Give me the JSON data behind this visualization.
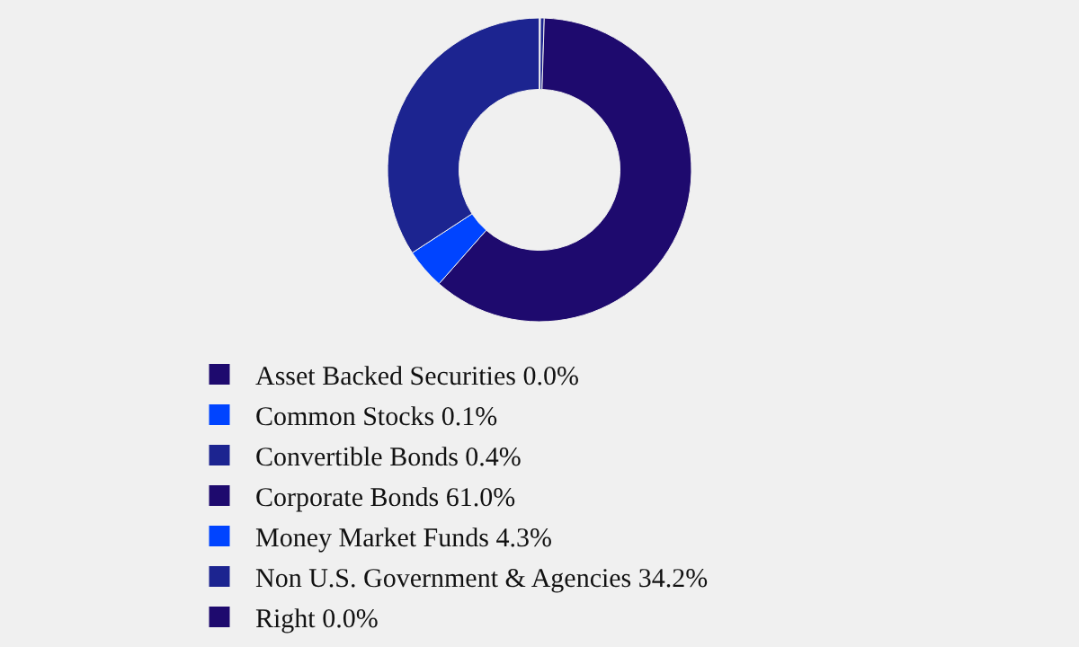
{
  "chart_data": {
    "type": "donut",
    "categories": [
      "Asset Backed Securities",
      "Common Stocks",
      "Convertible Bonds",
      "Corporate Bonds",
      "Money Market Funds",
      "Non U.S. Government & Agencies",
      "Right"
    ],
    "values": [
      0.0,
      0.1,
      0.4,
      61.0,
      4.3,
      34.2,
      0.0
    ],
    "value_labels": [
      "0.0%",
      "0.1%",
      "0.4%",
      "61.0%",
      "4.3%",
      "34.2%",
      "0.0%"
    ],
    "colors": [
      "#1e0a6e",
      "#0044ff",
      "#1c2490",
      "#1e0a6e",
      "#0044ff",
      "#1c2490",
      "#1e0a6e"
    ],
    "legend": "bottom"
  }
}
